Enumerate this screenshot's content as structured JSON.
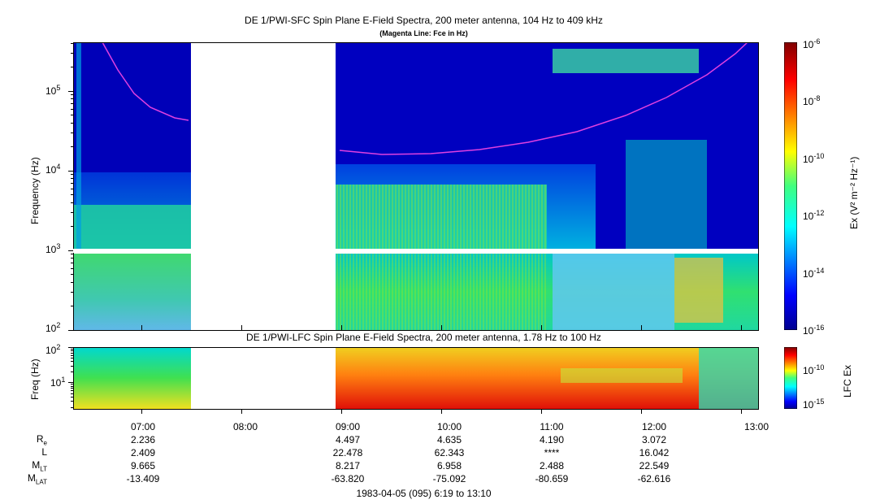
{
  "chart_data": [
    {
      "type": "heatmap",
      "title": "DE 1/PWI-SFC  Spin Plane E-Field Spectra, 200 meter antenna, 104 Hz to 409 kHz",
      "subtitle": "(Magenta Line: Fce in Hz)",
      "ylabel": "Frequency (Hz)",
      "yscale": "log",
      "ylim": [
        100,
        409000
      ],
      "y_ticks": [
        "10^2",
        "10^3",
        "10^4",
        "10^5"
      ],
      "colorbar": {
        "label": "Ex (V² m⁻² Hz⁻¹)",
        "scale": "log",
        "range": [
          1e-16,
          1e-06
        ],
        "ticks": [
          "10^-6",
          "10^-8",
          "10^-10",
          "10^-12",
          "10^-14",
          "10^-16"
        ]
      },
      "data_gaps": [
        {
          "start": "07:45",
          "end": "08:52"
        }
      ],
      "fce_line": {
        "name": "Fce",
        "color": "#e040e0",
        "points": [
          {
            "time": "06:37",
            "freq_hz": 400000
          },
          {
            "time": "06:50",
            "freq_hz": 180000
          },
          {
            "time": "07:05",
            "freq_hz": 90000
          },
          {
            "time": "07:20",
            "freq_hz": 58000
          },
          {
            "time": "07:45",
            "freq_hz": 41000
          },
          {
            "time": "08:52",
            "freq_hz": 17000
          },
          {
            "time": "09:30",
            "freq_hz": 15500
          },
          {
            "time": "10:00",
            "freq_hz": 15800
          },
          {
            "time": "10:30",
            "freq_hz": 17500
          },
          {
            "time": "11:00",
            "freq_hz": 21000
          },
          {
            "time": "11:30",
            "freq_hz": 29000
          },
          {
            "time": "12:00",
            "freq_hz": 48000
          },
          {
            "time": "12:30",
            "freq_hz": 105000
          },
          {
            "time": "12:50",
            "freq_hz": 260000
          },
          {
            "time": "12:57",
            "freq_hz": 400000
          }
        ]
      }
    },
    {
      "type": "heatmap",
      "title": "DE 1/PWI-LFC  Spin Plane E-Field Spectra, 200 meter antenna, 1.78 Hz to 100 Hz",
      "ylabel": "Freq (Hz)",
      "yscale": "log",
      "ylim": [
        1.78,
        100
      ],
      "y_ticks": [
        "10^1",
        "10^2"
      ],
      "colorbar": {
        "label": "LFC Ex",
        "scale": "log",
        "ticks": [
          "10^-10",
          "10^-15"
        ]
      },
      "data_gaps": [
        {
          "start": "07:45",
          "end": "08:52"
        }
      ]
    }
  ],
  "time_axis": {
    "range": [
      "06:19",
      "13:10"
    ],
    "ticks": [
      "07:00",
      "08:00",
      "09:00",
      "10:00",
      "11:00",
      "12:00",
      "13:00"
    ]
  },
  "ephemeris": {
    "labels": {
      "re": "R",
      "re_sub": "e",
      "l": "L",
      "mlt": "M",
      "mlt_sub": "LT",
      "mlat": "M",
      "mlat_sub": "LAT"
    },
    "columns": [
      {
        "time": "07:00",
        "re": "2.236",
        "l": "2.409",
        "mlt": "9.665",
        "mlat": "-13.409"
      },
      {
        "time": "09:00",
        "re": "4.497",
        "l": "22.478",
        "mlt": "8.217",
        "mlat": "-63.820"
      },
      {
        "time": "10:00",
        "re": "4.635",
        "l": "62.343",
        "mlt": "6.958",
        "mlat": "-75.092"
      },
      {
        "time": "11:00",
        "re": "4.190",
        "l": "****",
        "mlt": "2.488",
        "mlat": "-80.659"
      },
      {
        "time": "12:00",
        "re": "3.072",
        "l": "16.042",
        "mlt": "22.549",
        "mlat": "-62.616"
      }
    ]
  },
  "footer": "1983-04-05 (095) 6:19 to 13:10",
  "colors": {
    "fce_line": "#e040e0",
    "background_floor": "#0000c8"
  }
}
